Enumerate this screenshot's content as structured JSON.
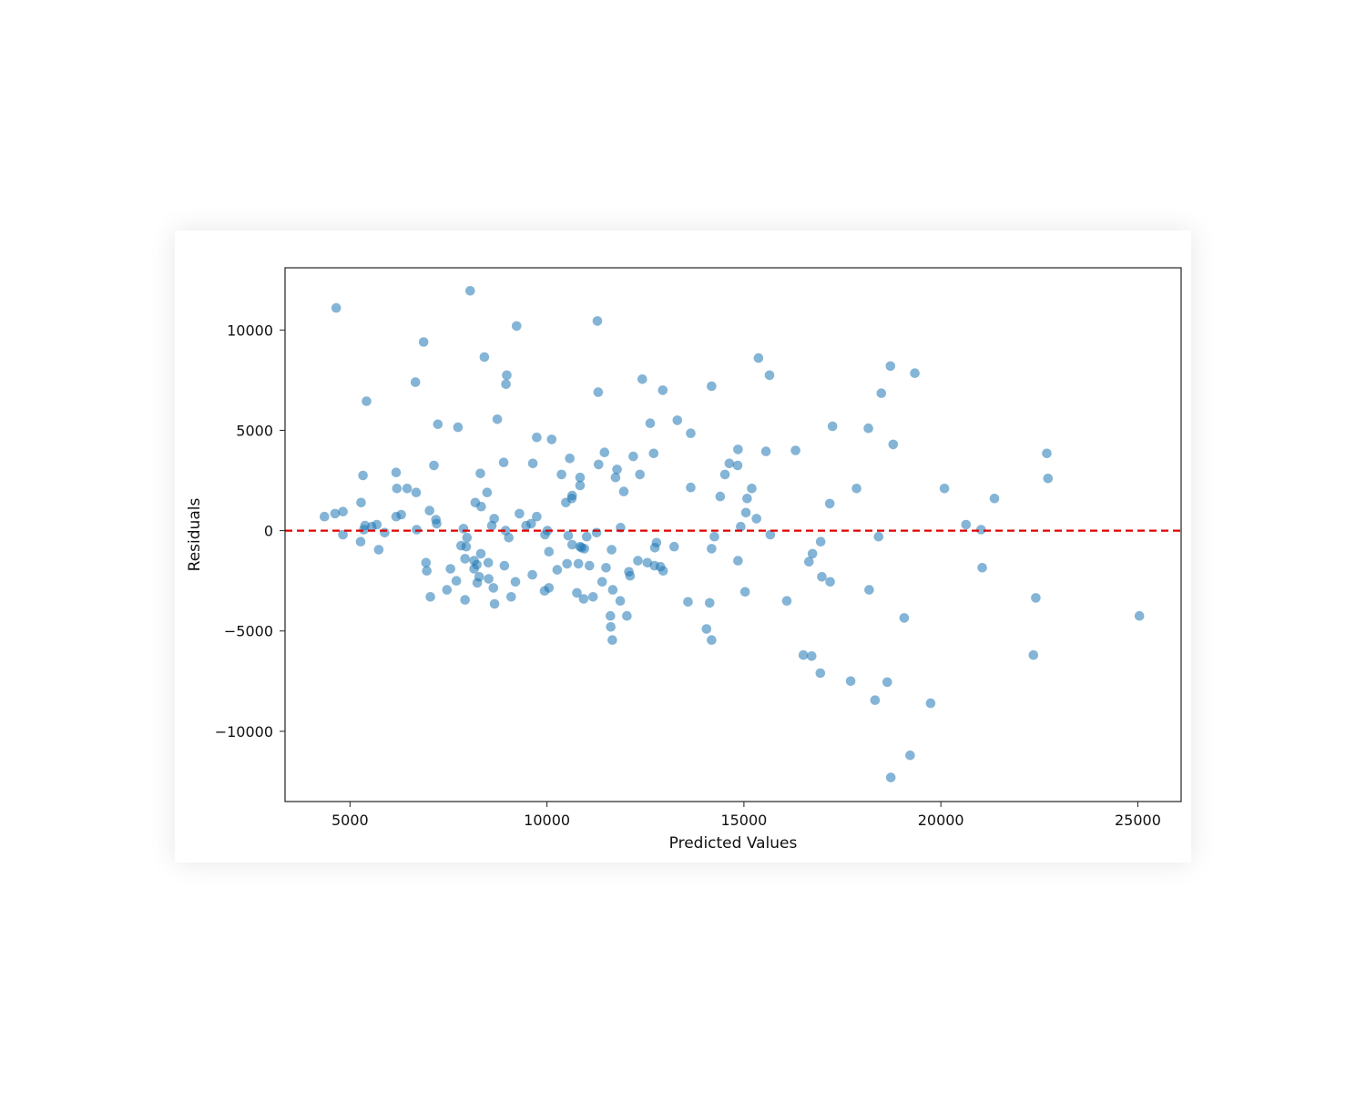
{
  "chart_data": {
    "type": "scatter",
    "title": "",
    "xlabel": "Predicted Values",
    "ylabel": "Residuals",
    "xlim": [
      3350,
      26100
    ],
    "ylim": [
      -13500,
      13100
    ],
    "x_ticks": [
      5000,
      10000,
      15000,
      20000,
      25000
    ],
    "x_tick_labels": [
      "5000",
      "10000",
      "15000",
      "20000",
      "25000"
    ],
    "y_ticks": [
      10000,
      5000,
      0,
      -5000,
      -10000
    ],
    "y_tick_labels": [
      "10000",
      "5000",
      "0",
      "−5000",
      "−10000"
    ],
    "grid": false,
    "marker_color": "#1f77b4",
    "marker_alpha": 0.55,
    "reference_line": {
      "y": 0,
      "color": "#e00000",
      "style": "dashed"
    },
    "points": [
      [
        4650,
        11100
      ],
      [
        4350,
        700
      ],
      [
        4620,
        850
      ],
      [
        4820,
        950
      ],
      [
        4820,
        -200
      ],
      [
        5280,
        1400
      ],
      [
        5330,
        2750
      ],
      [
        5420,
        6450
      ],
      [
        5380,
        250
      ],
      [
        5350,
        50
      ],
      [
        5550,
        200
      ],
      [
        5680,
        300
      ],
      [
        5730,
        -950
      ],
      [
        5270,
        -550
      ],
      [
        5880,
        -100
      ],
      [
        6170,
        2900
      ],
      [
        6190,
        2100
      ],
      [
        6300,
        800
      ],
      [
        6170,
        700
      ],
      [
        6450,
        2100
      ],
      [
        6680,
        1900
      ],
      [
        6660,
        7400
      ],
      [
        6870,
        9400
      ],
      [
        6690,
        50
      ],
      [
        6930,
        -1600
      ],
      [
        6950,
        -2000
      ],
      [
        7020,
        1000
      ],
      [
        7040,
        -3300
      ],
      [
        7130,
        3250
      ],
      [
        7180,
        550
      ],
      [
        7200,
        350
      ],
      [
        7230,
        5300
      ],
      [
        7460,
        -2950
      ],
      [
        7550,
        -1900
      ],
      [
        7700,
        -2500
      ],
      [
        7740,
        5150
      ],
      [
        7820,
        -750
      ],
      [
        7920,
        -1400
      ],
      [
        7880,
        100
      ],
      [
        7950,
        -800
      ],
      [
        7970,
        -350
      ],
      [
        7920,
        -3450
      ],
      [
        8050,
        11950
      ],
      [
        8150,
        -1500
      ],
      [
        8150,
        -1900
      ],
      [
        8180,
        1400
      ],
      [
        8220,
        -1700
      ],
      [
        8230,
        -2600
      ],
      [
        8280,
        -2300
      ],
      [
        8310,
        2850
      ],
      [
        8330,
        1200
      ],
      [
        8320,
        -1150
      ],
      [
        8410,
        8650
      ],
      [
        8480,
        1900
      ],
      [
        8510,
        -1600
      ],
      [
        8520,
        -2400
      ],
      [
        8600,
        250
      ],
      [
        8640,
        -2850
      ],
      [
        8660,
        600
      ],
      [
        8670,
        -3650
      ],
      [
        8740,
        5550
      ],
      [
        8900,
        3400
      ],
      [
        8950,
        0
      ],
      [
        8920,
        -1750
      ],
      [
        8960,
        7300
      ],
      [
        8980,
        7750
      ],
      [
        9030,
        -350
      ],
      [
        9090,
        -3300
      ],
      [
        9200,
        -2550
      ],
      [
        9230,
        10200
      ],
      [
        9300,
        850
      ],
      [
        9470,
        250
      ],
      [
        9600,
        350
      ],
      [
        9640,
        3350
      ],
      [
        9630,
        -2200
      ],
      [
        9740,
        700
      ],
      [
        9740,
        4650
      ],
      [
        9950,
        -200
      ],
      [
        9940,
        -3000
      ],
      [
        10010,
        0
      ],
      [
        10050,
        -1050
      ],
      [
        10050,
        -2850
      ],
      [
        10120,
        4550
      ],
      [
        10260,
        -1950
      ],
      [
        10370,
        2800
      ],
      [
        10480,
        1400
      ],
      [
        10510,
        -1650
      ],
      [
        10540,
        -250
      ],
      [
        10580,
        3600
      ],
      [
        10630,
        1600
      ],
      [
        10640,
        1750
      ],
      [
        10640,
        -700
      ],
      [
        10760,
        -3100
      ],
      [
        10800,
        -1650
      ],
      [
        10840,
        2650
      ],
      [
        10840,
        2250
      ],
      [
        10840,
        -800
      ],
      [
        10880,
        -850
      ],
      [
        10930,
        -3400
      ],
      [
        10950,
        -900
      ],
      [
        11010,
        -300
      ],
      [
        11080,
        -1750
      ],
      [
        11170,
        -3300
      ],
      [
        11260,
        -100
      ],
      [
        11280,
        10450
      ],
      [
        11300,
        6900
      ],
      [
        11310,
        3300
      ],
      [
        11400,
        -2550
      ],
      [
        11460,
        3900
      ],
      [
        11500,
        -1850
      ],
      [
        11610,
        -4250
      ],
      [
        11620,
        -4800
      ],
      [
        11640,
        -950
      ],
      [
        11660,
        -5450
      ],
      [
        11670,
        -2950
      ],
      [
        11740,
        2650
      ],
      [
        11780,
        3050
      ],
      [
        11870,
        150
      ],
      [
        11860,
        -3500
      ],
      [
        11950,
        1950
      ],
      [
        12030,
        -4250
      ],
      [
        12080,
        -2050
      ],
      [
        12110,
        -2250
      ],
      [
        12190,
        3700
      ],
      [
        12310,
        -1500
      ],
      [
        12360,
        2800
      ],
      [
        12420,
        7550
      ],
      [
        12550,
        -1600
      ],
      [
        12620,
        5350
      ],
      [
        12710,
        3850
      ],
      [
        12730,
        -1750
      ],
      [
        12740,
        -850
      ],
      [
        12780,
        -600
      ],
      [
        12880,
        -1800
      ],
      [
        12940,
        7000
      ],
      [
        12950,
        -2000
      ],
      [
        13230,
        -800
      ],
      [
        13310,
        5500
      ],
      [
        13580,
        -3550
      ],
      [
        13650,
        2150
      ],
      [
        13650,
        4850
      ],
      [
        14050,
        -4900
      ],
      [
        14130,
        -3600
      ],
      [
        14180,
        7200
      ],
      [
        14180,
        -900
      ],
      [
        14180,
        -5450
      ],
      [
        14250,
        -300
      ],
      [
        14400,
        1700
      ],
      [
        14520,
        2800
      ],
      [
        14630,
        3350
      ],
      [
        14850,
        4050
      ],
      [
        14840,
        3250
      ],
      [
        14850,
        -1500
      ],
      [
        14920,
        200
      ],
      [
        15030,
        -3050
      ],
      [
        15050,
        900
      ],
      [
        15080,
        1600
      ],
      [
        15200,
        2100
      ],
      [
        15320,
        600
      ],
      [
        15370,
        8600
      ],
      [
        15560,
        3950
      ],
      [
        15650,
        7750
      ],
      [
        15670,
        -200
      ],
      [
        16090,
        -3500
      ],
      [
        16310,
        4000
      ],
      [
        16510,
        -6200
      ],
      [
        16650,
        -1550
      ],
      [
        16720,
        -6250
      ],
      [
        16740,
        -1150
      ],
      [
        16940,
        -7100
      ],
      [
        16950,
        -550
      ],
      [
        16980,
        -2300
      ],
      [
        17180,
        1350
      ],
      [
        17190,
        -2550
      ],
      [
        17250,
        5200
      ],
      [
        17710,
        -7500
      ],
      [
        17860,
        2100
      ],
      [
        18160,
        5100
      ],
      [
        18180,
        -2950
      ],
      [
        18330,
        -8450
      ],
      [
        18420,
        -300
      ],
      [
        18490,
        6850
      ],
      [
        18640,
        -7550
      ],
      [
        18720,
        8200
      ],
      [
        18730,
        -12300
      ],
      [
        18790,
        4300
      ],
      [
        19070,
        -4350
      ],
      [
        19220,
        -11200
      ],
      [
        19340,
        7850
      ],
      [
        19740,
        -8600
      ],
      [
        20090,
        2100
      ],
      [
        20640,
        300
      ],
      [
        21020,
        50
      ],
      [
        21050,
        -1850
      ],
      [
        21360,
        1600
      ],
      [
        22350,
        -6200
      ],
      [
        22410,
        -3350
      ],
      [
        22690,
        3850
      ],
      [
        22720,
        2600
      ],
      [
        25040,
        -4250
      ]
    ]
  }
}
